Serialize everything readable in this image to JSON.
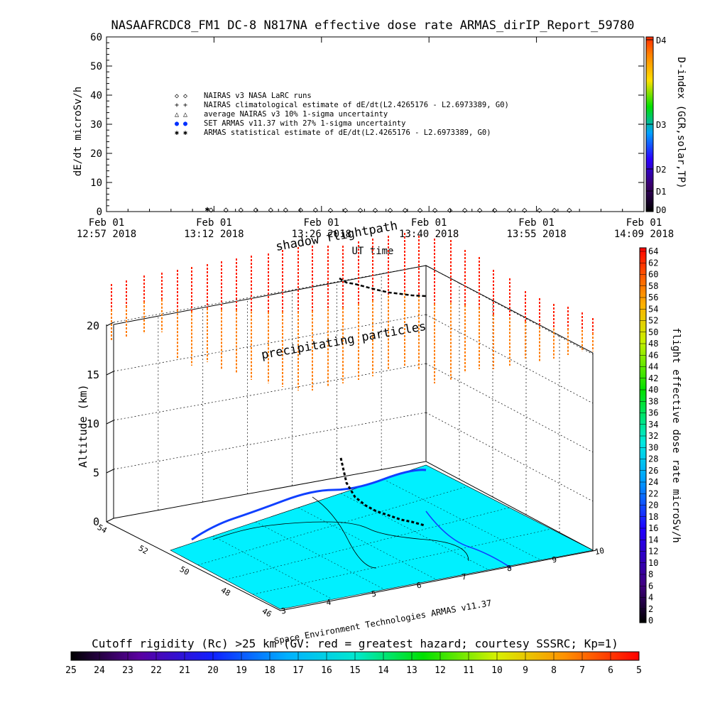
{
  "title": "NASAAFRCDC8_FM1 DC-8    N817NA effective dose rate ARMAS_dirIP_Report_59780",
  "top_panel": {
    "ylabel": "dE/dt microSv/h",
    "xlabel": "UT time",
    "ylim": [
      0,
      60
    ],
    "yticks": [
      "0",
      "10",
      "20",
      "30",
      "40",
      "50",
      "60"
    ],
    "xticks": [
      {
        "line1": "Feb 01",
        "line2": "12:57 2018"
      },
      {
        "line1": "Feb 01",
        "line2": "13:12 2018"
      },
      {
        "line1": "Feb 01",
        "line2": "13:26 2018"
      },
      {
        "line1": "Feb 01",
        "line2": "13:40 2018"
      },
      {
        "line1": "Feb 01",
        "line2": "13:55 2018"
      },
      {
        "line1": "Feb 01",
        "line2": "14:09 2018"
      }
    ],
    "legend": [
      {
        "marker": "◇ ◇",
        "text": "NAIRAS v3 NASA LaRC runs"
      },
      {
        "marker": "+ +",
        "text": "NAIRAS climatological estimate of dE/dt(L2.4265176 - L2.6973389, G0)"
      },
      {
        "marker": "△ △",
        "text": "average NAIRAS v3 10% 1-sigma uncertainty"
      },
      {
        "marker": "● ●",
        "text": "SET ARMAS v11.37 with 27% 1-sigma uncertainty"
      },
      {
        "marker": "✱ ✱",
        "text": "ARMAS statistical estimate of dE/dt(L2.4265176 - L2.6973389, G0)"
      }
    ],
    "dindex": {
      "label": "D-index (GCR,solar,TP)",
      "ticks": [
        "D4",
        "D3",
        "D2",
        "D1",
        "D0"
      ],
      "colors": [
        "#ff2a00",
        "#ffd000",
        "#00c800",
        "#00c8ff",
        "#0000ff",
        "#6a00c8",
        "#000000"
      ]
    }
  },
  "chart_data": {
    "type": "scatter",
    "title": "NASAAFRCDC8_FM1 DC-8    N817NA effective dose rate ARMAS_dirIP_Report_59780",
    "xlabel": "UT time",
    "ylabel": "dE/dt microSv/h",
    "ylim": [
      0,
      60
    ],
    "x_range_minutes": [
      0,
      72
    ],
    "series": [
      {
        "name": "NAIRAS v3 NASA LaRC runs",
        "marker": "diamond",
        "x": [
          14,
          16,
          18,
          20,
          22,
          24,
          26,
          28,
          30,
          32,
          34,
          36,
          38,
          40,
          42,
          44,
          46,
          48,
          50,
          52,
          54,
          56,
          58,
          60,
          62
        ],
        "values": [
          0.5,
          0.5,
          0.5,
          0.5,
          0.5,
          0.5,
          0.5,
          0.5,
          0.4,
          0.4,
          0.4,
          0.4,
          0.4,
          0.4,
          0.4,
          0.4,
          0.4,
          0.4,
          0.4,
          0.4,
          0.4,
          0.4,
          0.4,
          0.4,
          0.4
        ]
      },
      {
        "name": "ARMAS statistical estimate of dE/dt(L2.4265176 - L2.6973389, G0)",
        "marker": "asterisk",
        "x": [
          13.5
        ],
        "values": [
          1.0
        ]
      }
    ]
  },
  "panel3d": {
    "annotation_top": "shadow flightpath",
    "annotation_mid": "precipitating particles",
    "zlabel": "Altitude (km)",
    "zticks": [
      "0",
      "5",
      "10",
      "15",
      "20"
    ],
    "lat_ticks": [
      "54",
      "52",
      "50",
      "48",
      "46"
    ],
    "lon_ticks": [
      "3",
      "4",
      "5",
      "6",
      "7",
      "8",
      "9",
      "10"
    ],
    "credit": "Space Environment Technologies ARMAS v11.37",
    "map_color": "#00f0ff"
  },
  "right_colorbar": {
    "label": "flight effective dose rate microSv/h",
    "ticks": [
      "64",
      "62",
      "60",
      "58",
      "56",
      "54",
      "52",
      "50",
      "48",
      "46",
      "44",
      "42",
      "40",
      "38",
      "36",
      "34",
      "32",
      "30",
      "28",
      "26",
      "24",
      "22",
      "20",
      "18",
      "16",
      "14",
      "12",
      "10",
      "8",
      "6",
      "4",
      "2",
      "0"
    ]
  },
  "bottom_colorbar": {
    "title": "Cutoff rigidity (Rc) >25 km (GV: red = greatest hazard; courtesy SSSRC; Kp=1)",
    "ticks": [
      "25",
      "24",
      "23",
      "22",
      "21",
      "20",
      "19",
      "18",
      "17",
      "16",
      "15",
      "14",
      "13",
      "12",
      "11",
      "10",
      "9",
      "8",
      "7",
      "6",
      "5"
    ]
  }
}
